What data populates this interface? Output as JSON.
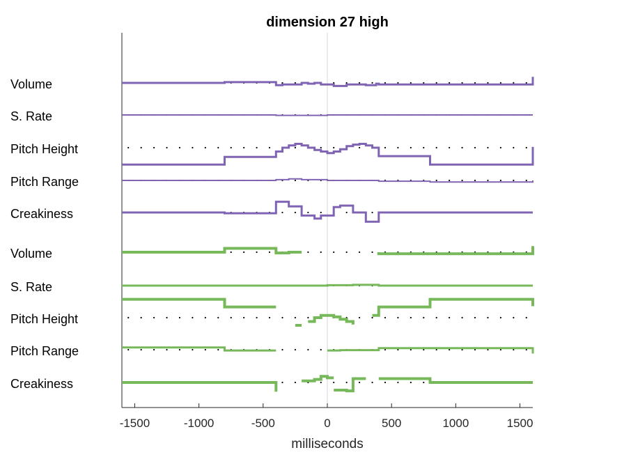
{
  "chart_data": {
    "type": "line",
    "title": "dimension 27 high",
    "xlabel": "milliseconds",
    "ylabel": "",
    "xlim": [
      -1600,
      1600
    ],
    "x_ticks": [
      -1500,
      -1000,
      -500,
      0,
      500,
      1000,
      1500
    ],
    "x_tick_labels": [
      "-1500",
      "-1000",
      "-500",
      "0",
      "500",
      "1000",
      "1500"
    ],
    "zero_line": true,
    "groups": [
      {
        "color": "#8064b4",
        "tracks": [
          {
            "label": "Volume",
            "stroke": 3,
            "segments": [
              [
                [
                  -1600,
                  0
                ],
                [
                  -800,
                  0
                ],
                [
                  -800,
                  1
                ],
                [
                  -400,
                  1
                ],
                [
                  -400,
                  -3
                ],
                [
                  -350,
                  -3
                ],
                [
                  -350,
                  -2
                ],
                [
                  -200,
                  -2
                ],
                [
                  -200,
                  0
                ],
                [
                  -150,
                  0
                ],
                [
                  -150,
                  -1
                ],
                [
                  -100,
                  -1
                ],
                [
                  -100,
                  0
                ],
                [
                  -50,
                  0
                ],
                [
                  -50,
                  -2
                ],
                [
                  50,
                  -2
                ],
                [
                  50,
                  -4
                ],
                [
                  150,
                  -4
                ],
                [
                  150,
                  -2
                ],
                [
                  300,
                  -2
                ],
                [
                  300,
                  -3
                ],
                [
                  380,
                  -3
                ],
                [
                  380,
                  -1
                ],
                [
                  400,
                  -1
                ],
                [
                  400,
                  -2
                ],
                [
                  1600,
                  -2
                ],
                [
                  1600,
                  0
                ],
                [
                  1600,
                  8
                ]
              ]
            ]
          },
          {
            "label": "S. Rate",
            "stroke": 2,
            "segments": [
              [
                [
                  -1600,
                  0
                ],
                [
                  -400,
                  0
                ],
                [
                  -400,
                  -0.5
                ],
                [
                  0,
                  -0.5
                ],
                [
                  0,
                  0
                ],
                [
                  1600,
                  0
                ]
              ]
            ]
          },
          {
            "label": "Pitch Height",
            "stroke": 3,
            "segments": [
              [
                [
                  -1600,
                  -22
                ],
                [
                  -800,
                  -22
                ],
                [
                  -800,
                  -12
                ],
                [
                  -400,
                  -12
                ],
                [
                  -400,
                  -5
                ],
                [
                  -350,
                  -5
                ],
                [
                  -350,
                  0
                ],
                [
                  -300,
                  0
                ],
                [
                  -300,
                  3
                ],
                [
                  -250,
                  3
                ],
                [
                  -250,
                  5
                ],
                [
                  -200,
                  5
                ],
                [
                  -200,
                  3
                ],
                [
                  -150,
                  3
                ],
                [
                  -150,
                  0
                ],
                [
                  -100,
                  0
                ],
                [
                  -100,
                  -3
                ],
                [
                  -50,
                  -3
                ],
                [
                  -50,
                  -5
                ],
                [
                  0,
                  -5
                ],
                [
                  0,
                  -7
                ],
                [
                  50,
                  -7
                ],
                [
                  50,
                  -5
                ],
                [
                  100,
                  -5
                ],
                [
                  100,
                  -2
                ],
                [
                  150,
                  -2
                ],
                [
                  150,
                  2
                ],
                [
                  200,
                  2
                ],
                [
                  200,
                  4
                ],
                [
                  250,
                  4
                ],
                [
                  250,
                  5
                ],
                [
                  300,
                  5
                ],
                [
                  300,
                  3
                ],
                [
                  350,
                  3
                ],
                [
                  350,
                  0
                ],
                [
                  400,
                  0
                ],
                [
                  400,
                  -11
                ],
                [
                  800,
                  -11
                ],
                [
                  800,
                  -22
                ],
                [
                  1600,
                  -22
                ],
                [
                  1600,
                  -20
                ],
                [
                  1600,
                  1
                ]
              ]
            ]
          },
          {
            "label": "Pitch Range",
            "stroke": 2,
            "segments": [
              [
                [
                  -1600,
                  0
                ],
                [
                  -400,
                  0
                ],
                [
                  -400,
                  1
                ],
                [
                  -300,
                  1
                ],
                [
                  -300,
                  2
                ],
                [
                  -200,
                  2
                ],
                [
                  -200,
                  1
                ],
                [
                  0,
                  1
                ],
                [
                  0,
                  0
                ],
                [
                  400,
                  0
                ],
                [
                  400,
                  -1
                ],
                [
                  800,
                  -1
                ],
                [
                  800,
                  -2
                ],
                [
                  1600,
                  -2
                ],
                [
                  1600,
                  0
                ]
              ]
            ]
          },
          {
            "label": "Creakiness",
            "stroke": 3,
            "segments": [
              [
                [
                  -1600,
                  0
                ],
                [
                  -800,
                  0
                ],
                [
                  -800,
                  -1
                ],
                [
                  -400,
                  -1
                ],
                [
                  -400,
                  14
                ],
                [
                  -300,
                  14
                ],
                [
                  -300,
                  8
                ],
                [
                  -200,
                  8
                ],
                [
                  -200,
                  -4
                ],
                [
                  -100,
                  -4
                ],
                [
                  -100,
                  -8
                ],
                [
                  -50,
                  -8
                ],
                [
                  -50,
                  -4
                ],
                [
                  50,
                  -4
                ],
                [
                  50,
                  7
                ],
                [
                  100,
                  7
                ],
                [
                  100,
                  9
                ],
                [
                  200,
                  9
                ],
                [
                  200,
                  0
                ],
                [
                  300,
                  0
                ],
                [
                  300,
                  -12
                ],
                [
                  400,
                  -12
                ],
                [
                  400,
                  0
                ],
                [
                  1600,
                  0
                ]
              ]
            ]
          }
        ]
      },
      {
        "color": "#77b95a",
        "tracks": [
          {
            "label": "Volume",
            "stroke": 4,
            "segments": [
              [
                [
                  -1600,
                  0
                ],
                [
                  -800,
                  0
                ],
                [
                  -800,
                  5
                ],
                [
                  -400,
                  5
                ],
                [
                  -400,
                  -1
                ],
                [
                  -300,
                  -1
                ],
                [
                  -300,
                  0
                ],
                [
                  -200,
                  0
                ]
              ],
              [
                [
                  400,
                  0
                ],
                [
                  400,
                  -2
                ],
                [
                  1600,
                  -2
                ],
                [
                  1600,
                  0
                ],
                [
                  1600,
                  8
                ]
              ]
            ]
          },
          {
            "label": "S. Rate",
            "stroke": 3,
            "segments": [
              [
                [
                  -1600,
                  0
                ],
                [
                  0,
                  0
                ],
                [
                  0,
                  0.5
                ],
                [
                  200,
                  0.5
                ],
                [
                  200,
                  1
                ],
                [
                  400,
                  1
                ],
                [
                  400,
                  0
                ],
                [
                  1600,
                  0
                ]
              ]
            ]
          },
          {
            "label": "Pitch Height",
            "stroke": 4,
            "segments": [
              [
                [
                  -1600,
                  24
                ],
                [
                  -800,
                  24
                ],
                [
                  -800,
                  14
                ],
                [
                  -400,
                  14
                ]
              ],
              [
                [
                  -250,
                  -10
                ],
                [
                  -200,
                  -10
                ]
              ],
              [
                [
                  -150,
                  -5
                ],
                [
                  -100,
                  -5
                ],
                [
                  -100,
                  0
                ],
                [
                  -50,
                  0
                ],
                [
                  -50,
                  3
                ],
                [
                  50,
                  3
                ],
                [
                  50,
                  1
                ],
                [
                  100,
                  1
                ],
                [
                  100,
                  -2
                ],
                [
                  150,
                  -2
                ],
                [
                  150,
                  -5
                ],
                [
                  200,
                  -5
                ],
                [
                  200,
                  -9
                ]
              ],
              [
                [
                  350,
                  3
                ],
                [
                  400,
                  3
                ],
                [
                  400,
                  14
                ],
                [
                  800,
                  14
                ],
                [
                  800,
                  24
                ],
                [
                  1600,
                  24
                ],
                [
                  1600,
                  15
                ]
              ]
            ]
          },
          {
            "label": "Pitch Range",
            "stroke": 3,
            "segments": [
              [
                [
                  -1600,
                  3
                ],
                [
                  -800,
                  3
                ],
                [
                  -800,
                  -1
                ],
                [
                  -400,
                  -1
                ]
              ],
              [
                [
                  0,
                  -1
                ],
                [
                  100,
                  -1
                ],
                [
                  100,
                  -0.5
                ],
                [
                  400,
                  -0.5
                ],
                [
                  400,
                  2
                ],
                [
                  1600,
                  2
                ],
                [
                  1600,
                  -5
                ]
              ]
            ]
          },
          {
            "label": "Creakiness",
            "stroke": 4,
            "segments": [
              [
                [
                  -1600,
                  0
                ],
                [
                  -400,
                  0
                ],
                [
                  -400,
                  -12
                ]
              ],
              [
                [
                  -200,
                  2
                ],
                [
                  -100,
                  2
                ],
                [
                  -100,
                  4
                ],
                [
                  -50,
                  4
                ],
                [
                  -50,
                  8
                ],
                [
                  0,
                  8
                ],
                [
                  0,
                  6
                ],
                [
                  50,
                  6
                ]
              ],
              [
                [
                  50,
                  -10
                ],
                [
                  150,
                  -10
                ],
                [
                  150,
                  -11
                ],
                [
                  200,
                  -11
                ],
                [
                  200,
                  5
                ],
                [
                  300,
                  5
                ]
              ],
              [
                [
                  400,
                  5
                ],
                [
                  800,
                  5
                ],
                [
                  800,
                  0
                ],
                [
                  1600,
                  0
                ]
              ]
            ]
          }
        ]
      }
    ]
  }
}
